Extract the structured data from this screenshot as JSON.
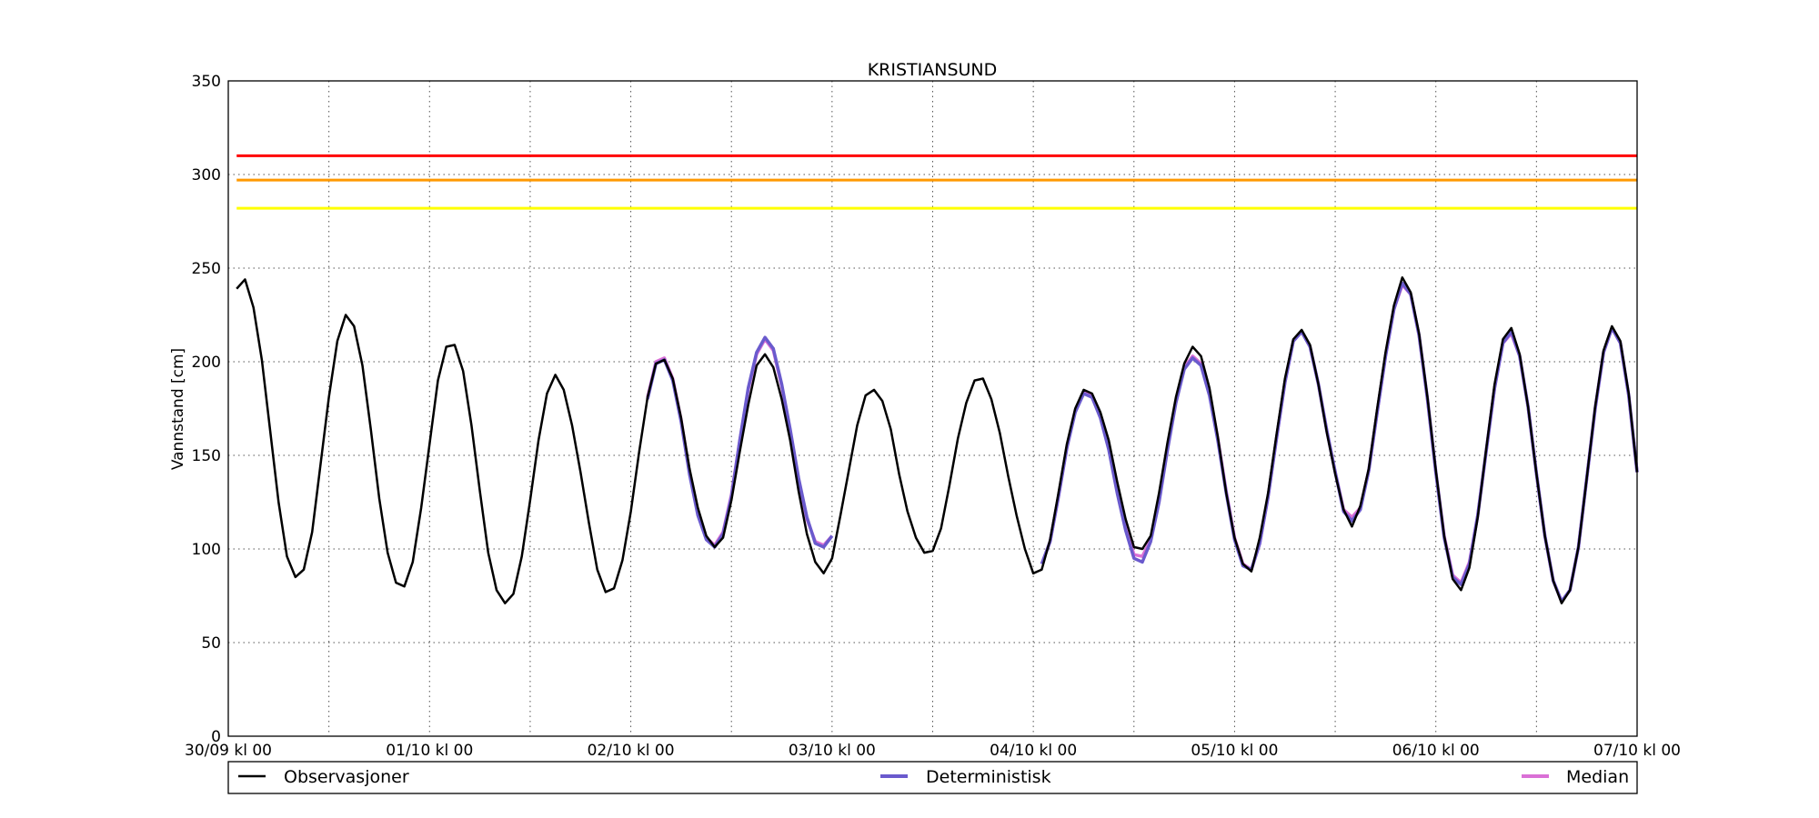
{
  "chart_data": {
    "type": "line",
    "title": "KRISTIANSUND",
    "ylabel": "Vannstand [cm]",
    "xlabel": "",
    "x_unit": "hours after 30/09 kl 00",
    "xlim": [
      0,
      168
    ],
    "ylim": [
      0,
      350
    ],
    "grid": true,
    "legend_placement": "bottom (below axes)",
    "yticks": [
      0,
      50,
      100,
      150,
      200,
      250,
      300,
      350
    ],
    "xticks": [
      {
        "hour": 0,
        "label": "30/09 kl 00"
      },
      {
        "hour": 24,
        "label": "01/10 kl 00"
      },
      {
        "hour": 48,
        "label": "02/10 kl 00"
      },
      {
        "hour": 72,
        "label": "03/10 kl 00"
      },
      {
        "hour": 96,
        "label": "04/10 kl 00"
      },
      {
        "hour": 120,
        "label": "05/10 kl 00"
      },
      {
        "hour": 144,
        "label": "06/10 kl 00"
      },
      {
        "hour": 168,
        "label": "07/10 kl 00"
      }
    ],
    "thresholds": [
      {
        "value": 310,
        "color": "#ff0000"
      },
      {
        "value": 297,
        "color": "#ff9900"
      },
      {
        "value": 282,
        "color": "#ffff00"
      }
    ],
    "series": [
      {
        "name": "Observasjoner",
        "color": "#000000",
        "start_hour": 1,
        "values": [
          239,
          244,
          229,
          201,
          163,
          125,
          96,
          85,
          89,
          109,
          145,
          181,
          211,
          225,
          219,
          198,
          164,
          127,
          98,
          82,
          80,
          93,
          122,
          156,
          190,
          208,
          209,
          195,
          166,
          131,
          98,
          78,
          71,
          76,
          96,
          126,
          158,
          183,
          193,
          185,
          166,
          141,
          114,
          89,
          77,
          79,
          94,
          120,
          152,
          181,
          199,
          201,
          191,
          170,
          143,
          122,
          107,
          101,
          106,
          126,
          152,
          177,
          198,
          204,
          197,
          180,
          158,
          131,
          108,
          93,
          87,
          95,
          118,
          142,
          166,
          182,
          185,
          179,
          164,
          140,
          120,
          106,
          98,
          99,
          111,
          134,
          159,
          178,
          190,
          191,
          180,
          162,
          139,
          118,
          100,
          87,
          89,
          105,
          130,
          156,
          175,
          185,
          183,
          173,
          158,
          136,
          116,
          101,
          100,
          107,
          130,
          157,
          181,
          199,
          208,
          203,
          186,
          160,
          130,
          106,
          92,
          88,
          106,
          130,
          161,
          191,
          212,
          217,
          209,
          188,
          162,
          140,
          121,
          112,
          123,
          143,
          175,
          205,
          230,
          245,
          237,
          215,
          181,
          142,
          107,
          84,
          78,
          90,
          117,
          153,
          188,
          212,
          218,
          204,
          176,
          140,
          107,
          83,
          71,
          78,
          101,
          138,
          176,
          206,
          219,
          211,
          183,
          141
        ]
      },
      {
        "name": "Deterministisk",
        "color": "#6a5acd",
        "segments": [
          {
            "start_hour": 50,
            "values": [
              180,
              199,
              201,
              190,
              168,
              140,
              118,
              105,
              101,
              108,
              128,
              158,
              186,
              205,
              213,
              207,
              188,
              164,
              138,
              117,
              103,
              101,
              107
            ]
          },
          {
            "start_hour": 97,
            "values": [
              92,
              104,
              128,
              154,
              173,
              183,
              181,
              170,
              153,
              130,
              110,
              95,
              93,
              104,
              125,
              153,
              178,
              196,
              202,
              198,
              182,
              158,
              130,
              105,
              91,
              89,
              103,
              128,
              159,
              189,
              211,
              216,
              208,
              188,
              163,
              141,
              120,
              115,
              121,
              142,
              173,
              203,
              228,
              242,
              236,
              214,
              180,
              141,
              106,
              85,
              81,
              92,
              118,
              152,
              186,
              210,
              216,
              203,
              176,
              140,
              107,
              83,
              72,
              78,
              101,
              138,
              175,
              205,
              218,
              210,
              182,
              141
            ]
          }
        ]
      },
      {
        "name": "Median",
        "color": "#da70d6",
        "segments": [
          {
            "start_hour": 50,
            "values": [
              181,
              200,
              202,
              191,
              169,
              141,
              119,
              106,
              102,
              109,
              129,
              158,
              185,
              204,
              212,
              206,
              187,
              163,
              137,
              116,
              104,
              102,
              107
            ]
          },
          {
            "start_hour": 97,
            "values": [
              92,
              104,
              128,
              154,
              174,
              184,
              182,
              171,
              154,
              131,
              112,
              97,
              96,
              105,
              126,
              154,
              179,
              197,
              203,
              199,
              183,
              159,
              131,
              106,
              92,
              89,
              103,
              128,
              159,
              189,
              211,
              216,
              208,
              188,
              163,
              141,
              121,
              117,
              122,
              142,
              173,
              203,
              228,
              241,
              236,
              214,
              180,
              141,
              107,
              86,
              82,
              93,
              118,
              152,
              186,
              210,
              215,
              203,
              176,
              140,
              107,
              83,
              72,
              78,
              101,
              138,
              175,
              205,
              218,
              210,
              182,
              141
            ]
          }
        ]
      }
    ]
  }
}
